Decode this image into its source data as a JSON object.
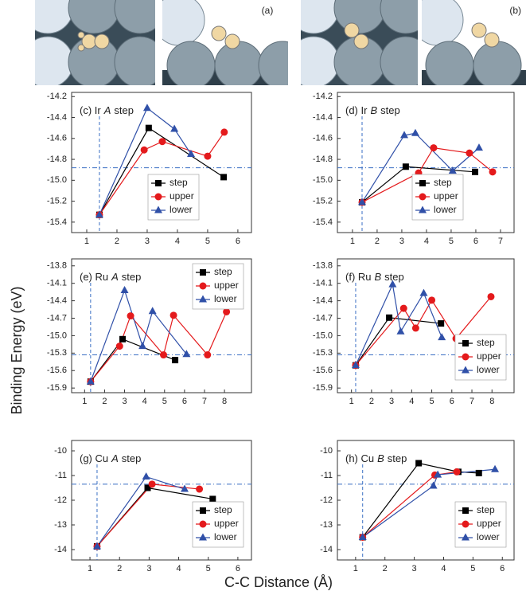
{
  "panel_labels": [
    "(a)",
    "(b)"
  ],
  "y_label": "Binding Energy (eV)",
  "x_label": "C-C Distance (Å)",
  "chart_data": [
    {
      "type": "line",
      "title": {
        "prefix": "(c) Ir",
        "emph": "A",
        "suffix": "step"
      },
      "xlim": [
        0.5,
        6.45
      ],
      "xticks": [
        1,
        2,
        3,
        4,
        5,
        6
      ],
      "ylim": [
        -15.5,
        -14.16
      ],
      "yticks": [
        -14.2,
        -14.4,
        -14.6,
        -14.8,
        {
          "value": -15.0,
          "label": "-15.0"
        },
        -15.2,
        -15.4
      ],
      "reference_x": 1.42,
      "reference_y": -14.88,
      "legend": "lower center",
      "series": [
        {
          "name": "step",
          "color": "#000000",
          "marker": "square",
          "x": [
            1.42,
            3.05,
            5.53
          ],
          "values": [
            -15.33,
            -14.5,
            -14.97
          ]
        },
        {
          "name": "upper",
          "color": "#e41a1c",
          "marker": "circle",
          "x": [
            1.42,
            2.9,
            3.5,
            5.0,
            5.55
          ],
          "values": [
            -15.33,
            -14.71,
            -14.63,
            -14.77,
            -14.54
          ]
        },
        {
          "name": "lower",
          "color": "#3050a8",
          "marker": "triangle",
          "x": [
            1.42,
            3.0,
            3.9,
            4.45
          ],
          "values": [
            -15.33,
            -14.31,
            -14.51,
            -14.75
          ]
        }
      ]
    },
    {
      "type": "line",
      "title": {
        "prefix": "(d) Ir",
        "emph": "B",
        "suffix": "step"
      },
      "xlim": [
        0.39,
        7.55
      ],
      "xticks": [
        1,
        2,
        3,
        4,
        5,
        6,
        7
      ],
      "ylim": [
        -15.5,
        -14.16
      ],
      "yticks": [
        -14.2,
        -14.4,
        -14.6,
        -14.8,
        {
          "value": -15.0,
          "label": "-15.0"
        },
        -15.2,
        -15.4
      ],
      "reference_x": 1.39,
      "reference_y": -14.88,
      "legend": "lower center",
      "series": [
        {
          "name": "step",
          "color": "#000000",
          "marker": "square",
          "x": [
            1.39,
            3.16,
            5.97
          ],
          "values": [
            -15.21,
            -14.87,
            -14.92
          ]
        },
        {
          "name": "upper",
          "color": "#e41a1c",
          "marker": "circle",
          "x": [
            1.39,
            3.68,
            4.29,
            5.74,
            6.68
          ],
          "values": [
            -15.21,
            -14.93,
            -14.69,
            -14.74,
            -14.92
          ]
        },
        {
          "name": "lower",
          "color": "#3050a8",
          "marker": "triangle",
          "x": [
            1.39,
            3.1,
            3.55,
            5.06,
            6.13
          ],
          "values": [
            -15.21,
            -14.57,
            -14.55,
            -14.91,
            -14.69
          ]
        }
      ]
    },
    {
      "type": "line",
      "title": {
        "prefix": "(e) Ru",
        "emph": "A",
        "suffix": "step"
      },
      "xlim": [
        0.35,
        9.35
      ],
      "xticks": [
        1,
        2,
        3,
        4,
        5,
        6,
        7,
        8
      ],
      "ylim": [
        -15.98,
        -13.68
      ],
      "yticks": [
        -13.8,
        -14.1,
        -14.4,
        -14.7,
        {
          "value": -15.0,
          "label": "-15.0"
        },
        -15.3,
        -15.6,
        -15.9
      ],
      "reference_x": 1.3,
      "reference_y": -15.33,
      "legend": "upper right",
      "series": [
        {
          "name": "step",
          "color": "#000000",
          "marker": "square",
          "x": [
            1.3,
            2.9,
            5.53
          ],
          "values": [
            -15.79,
            -15.06,
            -15.42
          ]
        },
        {
          "name": "upper",
          "color": "#e41a1c",
          "marker": "circle",
          "x": [
            1.3,
            2.75,
            3.3,
            4.95,
            5.45,
            7.15,
            8.1
          ],
          "values": [
            -15.79,
            -15.18,
            -14.66,
            -15.33,
            -14.65,
            -15.33,
            -14.59
          ]
        },
        {
          "name": "lower",
          "color": "#3050a8",
          "marker": "triangle",
          "x": [
            1.3,
            3.0,
            3.9,
            4.4,
            6.1
          ],
          "values": [
            -15.79,
            -14.22,
            -15.18,
            -14.58,
            -15.32
          ]
        }
      ]
    },
    {
      "type": "line",
      "title": {
        "prefix": "(f) Ru",
        "emph": "B",
        "suffix": "step"
      },
      "xlim": [
        0.3,
        9.1
      ],
      "xticks": [
        1,
        2,
        3,
        4,
        5,
        6,
        7,
        8
      ],
      "ylim": [
        -15.98,
        -13.68
      ],
      "yticks": [
        -13.8,
        -14.1,
        -14.4,
        -14.7,
        {
          "value": -15.0,
          "label": "-15.0"
        },
        -15.3,
        -15.6,
        -15.9
      ],
      "reference_x": 1.21,
      "reference_y": -15.33,
      "legend": "lower right",
      "series": [
        {
          "name": "step",
          "color": "#000000",
          "marker": "square",
          "x": [
            1.21,
            2.88,
            5.46
          ],
          "values": [
            -15.51,
            -14.69,
            -14.79
          ]
        },
        {
          "name": "upper",
          "color": "#e41a1c",
          "marker": "circle",
          "x": [
            1.21,
            3.6,
            4.2,
            5.0,
            6.21,
            7.95
          ],
          "values": [
            -15.51,
            -14.53,
            -14.87,
            -14.39,
            -15.05,
            -14.33
          ]
        },
        {
          "name": "lower",
          "color": "#3050a8",
          "marker": "triangle",
          "x": [
            1.21,
            3.05,
            3.45,
            4.6,
            5.5
          ],
          "values": [
            -15.51,
            -14.12,
            -14.93,
            -14.27,
            -15.03
          ]
        }
      ]
    },
    {
      "type": "line",
      "title": {
        "prefix": "(g) Cu",
        "emph": "A",
        "suffix": "step"
      },
      "xlim": [
        0.38,
        6.46
      ],
      "xticks": [
        1,
        2,
        3,
        4,
        5,
        6
      ],
      "ylim": [
        -14.42,
        -9.58
      ],
      "yticks": [
        -10,
        -11,
        -12,
        -13,
        -14
      ],
      "reference_x": 1.24,
      "reference_y": -11.35,
      "legend": "lower right",
      "series": [
        {
          "name": "step",
          "color": "#000000",
          "marker": "square",
          "x": [
            1.24,
            2.95,
            5.15
          ],
          "values": [
            -13.87,
            -11.5,
            -11.95
          ]
        },
        {
          "name": "upper",
          "color": "#e41a1c",
          "marker": "circle",
          "x": [
            1.24,
            3.1,
            4.7
          ],
          "values": [
            -13.87,
            -11.35,
            -11.55
          ]
        },
        {
          "name": "lower",
          "color": "#3050a8",
          "marker": "triangle",
          "x": [
            1.24,
            2.9,
            4.2
          ],
          "values": [
            -13.87,
            -11.05,
            -11.55
          ]
        }
      ]
    },
    {
      "type": "line",
      "title": {
        "prefix": "(h) Cu",
        "emph": "B",
        "suffix": "step"
      },
      "xlim": [
        0.38,
        6.4
      ],
      "xticks": [
        1,
        2,
        3,
        4,
        5,
        6
      ],
      "ylim": [
        -14.42,
        -9.58
      ],
      "yticks": [
        -10,
        -11,
        -12,
        -13,
        -14
      ],
      "reference_x": 1.24,
      "reference_y": -11.35,
      "legend": "lower right",
      "series": [
        {
          "name": "step",
          "color": "#000000",
          "marker": "square",
          "x": [
            1.24,
            3.15,
            4.5,
            5.2
          ],
          "values": [
            -13.5,
            -10.5,
            -10.85,
            -10.9
          ]
        },
        {
          "name": "upper",
          "color": "#e41a1c",
          "marker": "circle",
          "x": [
            1.24,
            3.7,
            4.45
          ],
          "values": [
            -13.5,
            -10.98,
            -10.85
          ]
        },
        {
          "name": "lower",
          "color": "#3050a8",
          "marker": "triangle",
          "x": [
            1.24,
            3.65,
            3.8,
            5.75
          ],
          "values": [
            -13.5,
            -11.42,
            -10.97,
            -10.75
          ]
        }
      ]
    }
  ]
}
